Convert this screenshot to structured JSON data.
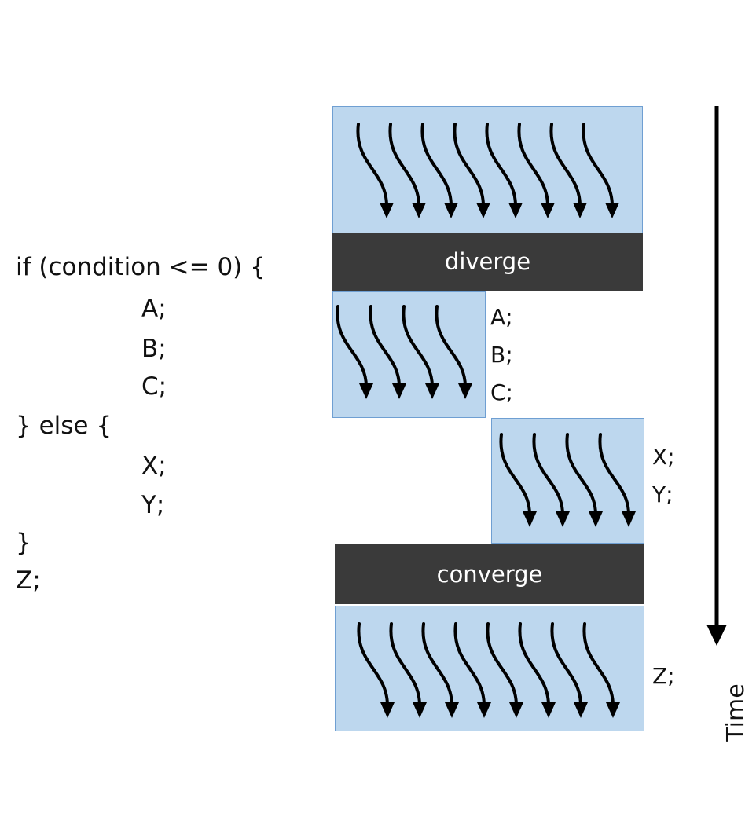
{
  "code": {
    "lines": [
      "if (condition <= 0) {",
      "A;",
      "B;",
      "C;",
      "} else {",
      "X;",
      "Y;",
      "}",
      "Z;"
    ]
  },
  "blocks": {
    "top": {
      "threads": 8
    },
    "branch_a": {
      "threads": 4,
      "statements": [
        "A;",
        "B;",
        "C;"
      ]
    },
    "branch_x": {
      "threads": 4,
      "statements": [
        "X;",
        "Y;"
      ]
    },
    "bottom": {
      "threads": 8,
      "statements": [
        "Z;"
      ]
    }
  },
  "bars": {
    "diverge": "diverge",
    "converge": "converge"
  },
  "axis": {
    "label": "Time"
  },
  "colors": {
    "block_fill": "#bdd7ee",
    "block_border": "#6f9fd2",
    "bar_fill": "#3a3a3a",
    "arrow": "#000000"
  },
  "icons": {
    "thread": "curved-thread-arrow-icon",
    "time": "down-arrow-icon"
  }
}
